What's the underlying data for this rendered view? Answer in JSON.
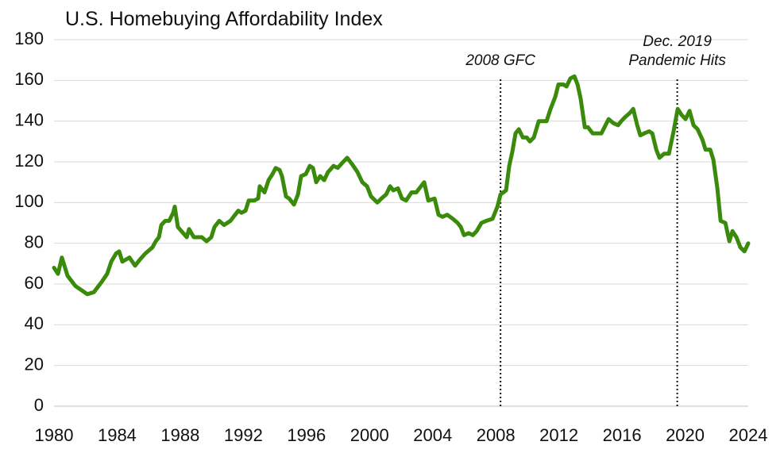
{
  "chart_data": {
    "type": "line",
    "title": "U.S. Homebuying Affordability Index",
    "x": [
      1980.0,
      1980.25,
      1980.5,
      1980.86,
      1981.36,
      1982.11,
      1982.52,
      1983.02,
      1983.37,
      1983.63,
      1983.93,
      1984.13,
      1984.33,
      1984.78,
      1985.14,
      1985.44,
      1985.79,
      1986.24,
      1986.45,
      1986.65,
      1986.8,
      1987.05,
      1987.3,
      1987.55,
      1987.65,
      1987.85,
      1988.41,
      1988.56,
      1988.86,
      1989.37,
      1989.67,
      1989.97,
      1990.17,
      1990.47,
      1990.78,
      1991.18,
      1991.48,
      1991.68,
      1991.88,
      1992.14,
      1992.34,
      1992.69,
      1992.94,
      1993.04,
      1993.34,
      1993.6,
      1993.85,
      1994.05,
      1994.3,
      1994.45,
      1994.7,
      1994.9,
      1995.21,
      1995.46,
      1995.66,
      1995.96,
      1996.21,
      1996.41,
      1996.62,
      1996.87,
      1997.12,
      1997.37,
      1997.72,
      1997.98,
      1998.33,
      1998.58,
      1998.88,
      1999.23,
      1999.54,
      1999.84,
      2000.09,
      2000.49,
      2000.75,
      2001.05,
      2001.3,
      2001.5,
      2001.8,
      2002.05,
      2002.31,
      2002.66,
      2002.96,
      2003.16,
      2003.46,
      2003.72,
      2004.12,
      2004.37,
      2004.62,
      2004.92,
      2005.28,
      2005.58,
      2005.78,
      2005.98,
      2006.28,
      2006.54,
      2006.79,
      2007.09,
      2007.39,
      2007.79,
      2008.1,
      2008.3,
      2008.65,
      2008.85,
      2009.05,
      2009.25,
      2009.46,
      2009.71,
      2009.96,
      2010.16,
      2010.41,
      2010.72,
      2010.97,
      2011.22,
      2011.47,
      2011.77,
      2011.97,
      2012.28,
      2012.48,
      2012.73,
      2012.98,
      2013.18,
      2013.38,
      2013.64,
      2013.84,
      2014.14,
      2014.44,
      2014.69,
      2014.89,
      2015.15,
      2015.45,
      2015.75,
      2015.95,
      2016.2,
      2016.5,
      2016.71,
      2016.96,
      2017.16,
      2017.41,
      2017.71,
      2017.92,
      2018.17,
      2018.37,
      2018.67,
      2018.97,
      2019.27,
      2019.53,
      2019.78,
      2020.03,
      2020.28,
      2020.53,
      2020.79,
      2021.09,
      2021.29,
      2021.59,
      2021.79,
      2022.04,
      2022.25,
      2022.55,
      2022.8,
      2023.0,
      2023.25,
      2023.5,
      2023.76,
      2024.0
    ],
    "values": [
      68,
      65,
      73,
      64,
      59,
      55,
      56,
      61,
      65,
      71,
      75,
      76,
      71,
      73,
      69,
      72,
      75,
      78,
      81,
      83,
      89,
      91,
      91,
      95,
      98,
      88,
      83,
      87,
      83,
      83,
      81,
      83,
      88,
      91,
      89,
      91,
      94,
      96,
      95,
      96,
      101,
      101,
      102,
      108,
      105,
      111,
      114,
      117,
      116,
      113,
      103,
      102,
      99,
      104,
      113,
      114,
      118,
      117,
      110,
      113,
      111,
      115,
      118,
      117,
      120,
      122,
      119,
      115,
      110,
      108,
      103,
      100,
      102,
      104,
      108,
      106,
      107,
      102,
      101,
      105,
      105,
      107,
      110,
      101,
      102,
      94,
      93,
      94,
      92,
      90,
      88,
      84,
      85,
      84,
      86,
      90,
      91,
      92,
      98,
      104,
      106,
      118,
      125,
      134,
      136,
      132,
      132,
      130,
      132,
      140,
      140,
      140,
      146,
      152,
      158,
      158,
      157,
      161,
      162,
      158,
      151,
      137,
      137,
      134,
      134,
      134,
      137,
      141,
      139,
      138,
      140,
      142,
      144,
      146,
      138,
      133,
      134,
      135,
      134,
      126,
      122,
      124,
      124,
      135,
      146,
      143,
      141,
      145,
      138,
      136,
      131,
      126,
      126,
      121,
      107,
      91,
      90,
      81,
      86,
      83,
      78,
      76,
      80
    ],
    "color": "#3a8a0c",
    "xlim": [
      1980,
      2024
    ],
    "xticks": [
      1980,
      1984,
      1988,
      1992,
      1996,
      2000,
      2004,
      2008,
      2012,
      2016,
      2020,
      2024
    ],
    "ylim": [
      0,
      180
    ],
    "yticks": [
      0,
      20,
      40,
      60,
      80,
      100,
      120,
      140,
      160,
      180
    ],
    "grid": true,
    "annotations": [
      {
        "x": 2008.3,
        "text": [
          "2008 GFC"
        ]
      },
      {
        "x": 2019.5,
        "text": [
          "Dec. 2019",
          "Pandemic Hits"
        ]
      }
    ]
  }
}
